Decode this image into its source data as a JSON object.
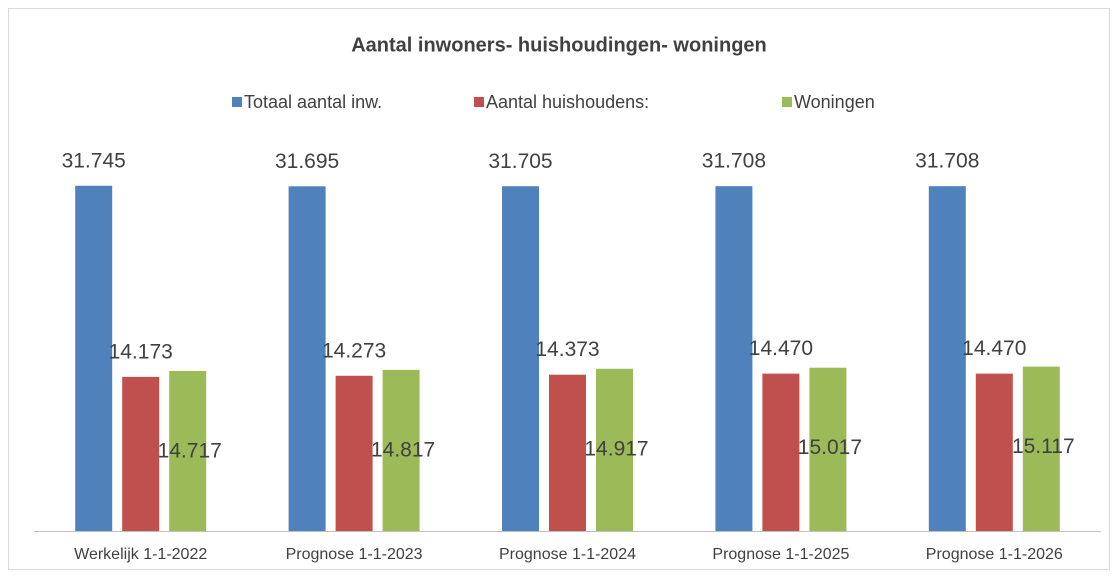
{
  "chart_data": {
    "type": "bar",
    "title": "Aantal inwoners- huishoudingen- woningen",
    "categories": [
      "Werkelijk 1-1-2022",
      "Prognose 1-1-2023",
      "Prognose 1-1-2024",
      "Prognose 1-1-2025",
      "Prognose 1-1-2026"
    ],
    "series": [
      {
        "name": "Totaal aantal inw.",
        "color": "#4f81bd",
        "values": [
          31745,
          31695,
          31705,
          31708,
          31708
        ],
        "value_labels": [
          "31.745",
          "31.695",
          "31.705",
          "31.708",
          "31.708"
        ]
      },
      {
        "name": "Aantal huishoudens:",
        "color": "#c0504d",
        "values": [
          14173,
          14273,
          14373,
          14470,
          14470
        ],
        "value_labels": [
          "14.173",
          "14.273",
          "14.373",
          "14.470",
          "14.470"
        ]
      },
      {
        "name": "Woningen",
        "color": "#9bbb59",
        "values": [
          14717,
          14817,
          14917,
          15017,
          15117
        ],
        "value_labels": [
          "14.717",
          "14.817",
          "14.917",
          "15.017",
          "15.117"
        ]
      }
    ],
    "ylim": [
      0,
      40000
    ]
  }
}
